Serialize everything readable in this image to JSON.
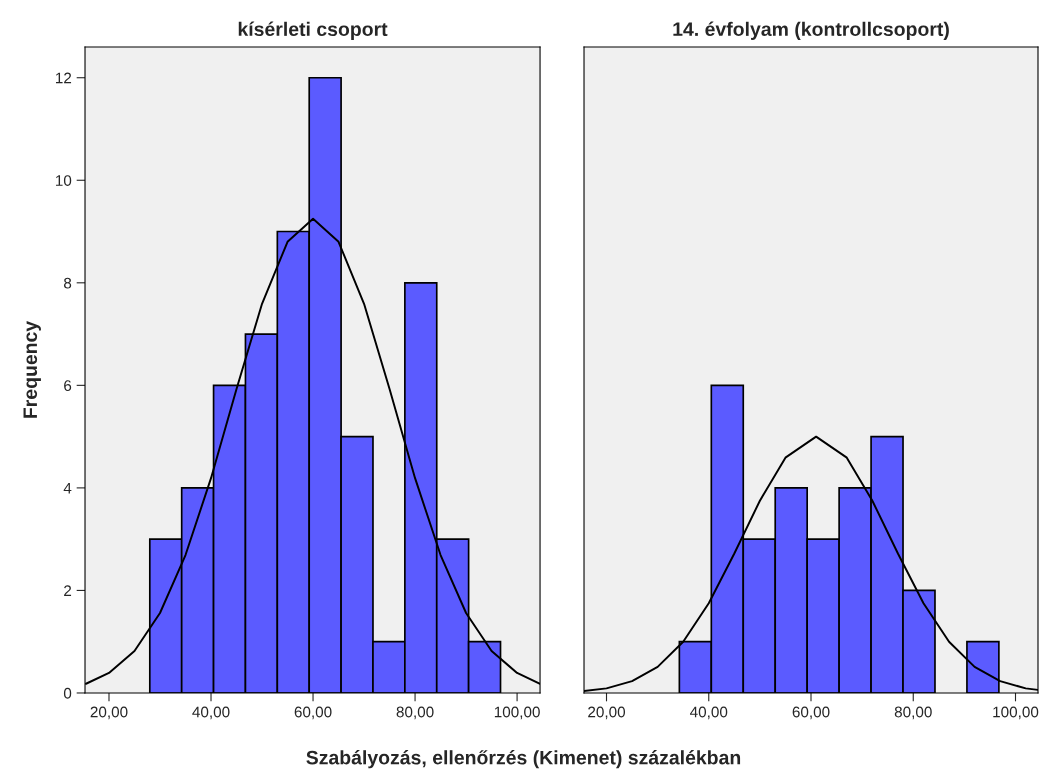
{
  "chart_data": [
    {
      "type": "histogram",
      "title": "kísérleti csoport",
      "ylabel": "Frequency",
      "xlabel": "Szabályozás, ellenőrzés (Kimenet) százalékban",
      "series": [
        {
          "color": "#5b5bff",
          "bins": [
            28.0,
            34.25,
            40.5,
            46.75,
            53.0,
            59.25,
            65.5,
            71.75,
            78.0,
            84.25,
            90.5,
            96.75
          ],
          "values": [
            3,
            4,
            6,
            7,
            9,
            12,
            5,
            1,
            8,
            3,
            1
          ]
        },
        {
          "type": "line",
          "color": "#000000",
          "x": [
            15.5,
            20,
            25,
            30,
            35,
            40,
            45,
            50,
            55,
            60,
            65,
            70,
            75,
            80,
            85,
            90,
            95,
            100,
            104.5
          ],
          "values": [
            0.18,
            0.39,
            0.82,
            1.56,
            2.69,
            4.19,
            5.93,
            7.59,
            8.8,
            9.25,
            8.8,
            7.59,
            5.93,
            4.19,
            2.69,
            1.56,
            0.82,
            0.39,
            0.18
          ]
        }
      ],
      "xlim": [
        15.3,
        104.5
      ],
      "xticks": [
        {
          "value": 20,
          "label": "20,00"
        },
        {
          "value": 40,
          "label": "40,00"
        },
        {
          "value": 60,
          "label": "60,00"
        },
        {
          "value": 80,
          "label": "80,00"
        },
        {
          "value": 100,
          "label": "100,00"
        }
      ],
      "ylim": [
        0,
        12.6
      ],
      "yticks": [
        0,
        2,
        4,
        6,
        8,
        10,
        12
      ],
      "grid": false,
      "legend": false
    },
    {
      "type": "histogram",
      "title": "14. évfolyam (kontrollcsoport)",
      "series": [
        {
          "color": "#5b5bff",
          "bins": [
            34.25,
            40.5,
            46.75,
            53.0,
            59.25,
            65.5,
            71.75,
            78.0,
            84.25,
            90.5,
            96.75
          ],
          "values": [
            1,
            6,
            3,
            4,
            3,
            4,
            5,
            2,
            null,
            1
          ]
        },
        {
          "type": "line",
          "color": "#000000",
          "x": [
            15.6,
            20,
            25,
            30,
            35,
            40,
            45,
            50,
            55,
            61,
            67,
            72,
            77,
            82,
            87,
            92,
            97,
            102,
            104.4
          ],
          "values": [
            0.04,
            0.09,
            0.23,
            0.51,
            1.0,
            1.75,
            2.72,
            3.75,
            4.59,
            5.0,
            4.59,
            3.75,
            2.72,
            1.75,
            1.0,
            0.51,
            0.23,
            0.09,
            0.06
          ]
        }
      ],
      "xlim": [
        15.6,
        104.4
      ],
      "xticks": [
        {
          "value": 20,
          "label": "20,00"
        },
        {
          "value": 40,
          "label": "40,00"
        },
        {
          "value": 60,
          "label": "60,00"
        },
        {
          "value": 80,
          "label": "80,00"
        },
        {
          "value": 100,
          "label": "100,00"
        }
      ],
      "ylim": [
        0,
        12.6
      ],
      "tick_labels": "x",
      "grid": false,
      "legend": false
    }
  ]
}
